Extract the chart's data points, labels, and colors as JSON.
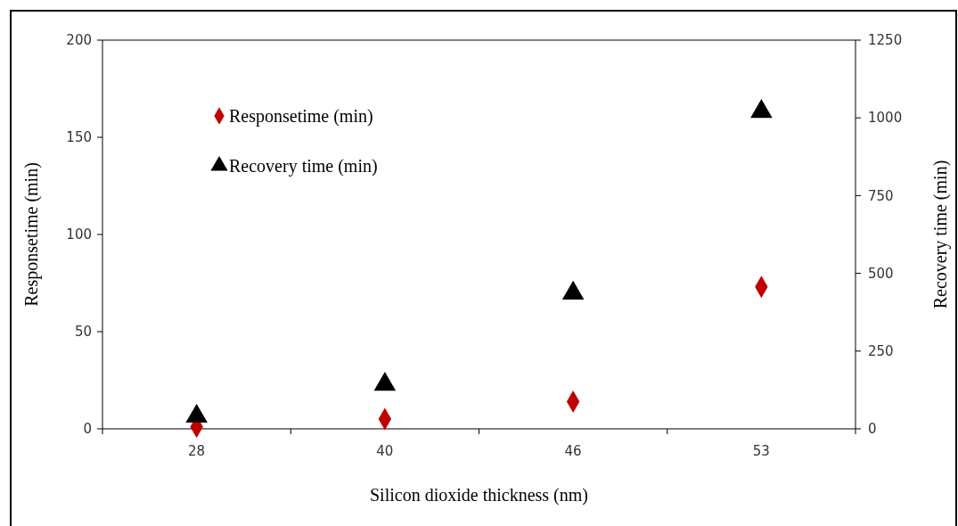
{
  "chart_data": {
    "type": "scatter",
    "xlabel": "Silicon dioxide thickness (nm)",
    "ylabel": "Responsetime (min)",
    "y2label": "Recovery time (min)",
    "categories": [
      "28",
      "40",
      "46",
      "53"
    ],
    "series": [
      {
        "name": "Responsetime (min)",
        "color": "#c00000",
        "marker": "diamond",
        "values": [
          1,
          5,
          14,
          73
        ]
      },
      {
        "name": "Recovery time (min)",
        "color": "#000000",
        "marker": "triangle",
        "axis": "y2",
        "values": [
          40,
          143,
          436,
          1020
        ]
      }
    ],
    "ylim": [
      0,
      200
    ],
    "yticks": [
      0,
      50,
      100,
      150,
      200
    ],
    "y2lim": [
      0,
      1250
    ],
    "y2ticks": [
      0,
      250,
      500,
      750,
      1000,
      1250
    ],
    "grid": false,
    "legend": "top left"
  }
}
